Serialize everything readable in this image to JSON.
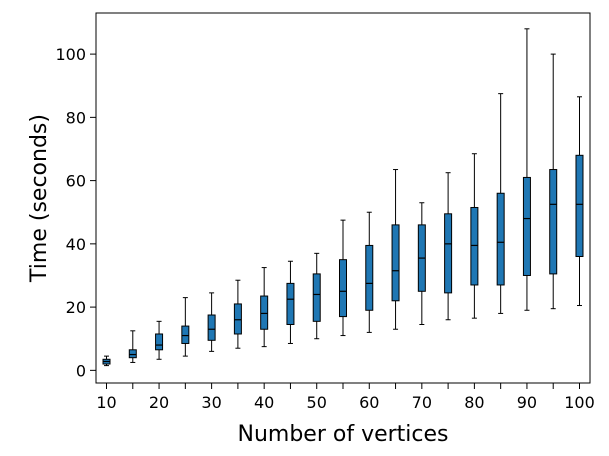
{
  "chart_data": {
    "type": "boxplot",
    "title": "",
    "xlabel": "Number of vertices",
    "ylabel": "Time (seconds)",
    "xlim": [
      8,
      102
    ],
    "ylim": [
      -4,
      113
    ],
    "x_major_ticks": [
      10,
      20,
      30,
      40,
      50,
      60,
      70,
      80,
      90,
      100
    ],
    "x_minor_ticks": [
      15,
      25,
      35,
      45,
      55,
      65,
      75,
      85,
      95
    ],
    "y_ticks": [
      0,
      20,
      40,
      60,
      80,
      100
    ],
    "box_color": "#1f77b4",
    "edge_color": "#000000",
    "boxes": [
      {
        "x": 10,
        "whisker_low": 1.5,
        "q1": 2.0,
        "median": 2.8,
        "q3": 3.5,
        "whisker_high": 4.5
      },
      {
        "x": 15,
        "whisker_low": 2.5,
        "q1": 4.0,
        "median": 5.0,
        "q3": 6.5,
        "whisker_high": 12.5
      },
      {
        "x": 20,
        "whisker_low": 3.5,
        "q1": 6.5,
        "median": 8.0,
        "q3": 11.5,
        "whisker_high": 15.5
      },
      {
        "x": 25,
        "whisker_low": 4.5,
        "q1": 8.5,
        "median": 11.0,
        "q3": 14.0,
        "whisker_high": 23.0
      },
      {
        "x": 30,
        "whisker_low": 6.0,
        "q1": 9.5,
        "median": 13.0,
        "q3": 17.5,
        "whisker_high": 24.5
      },
      {
        "x": 35,
        "whisker_low": 7.0,
        "q1": 11.5,
        "median": 16.0,
        "q3": 21.0,
        "whisker_high": 28.5
      },
      {
        "x": 40,
        "whisker_low": 7.5,
        "q1": 13.0,
        "median": 18.0,
        "q3": 23.5,
        "whisker_high": 32.5
      },
      {
        "x": 45,
        "whisker_low": 8.5,
        "q1": 14.5,
        "median": 22.5,
        "q3": 27.5,
        "whisker_high": 34.5
      },
      {
        "x": 50,
        "whisker_low": 10.0,
        "q1": 15.5,
        "median": 24.0,
        "q3": 30.5,
        "whisker_high": 37.0
      },
      {
        "x": 55,
        "whisker_low": 11.0,
        "q1": 17.0,
        "median": 25.0,
        "q3": 35.0,
        "whisker_high": 47.5
      },
      {
        "x": 60,
        "whisker_low": 12.0,
        "q1": 19.0,
        "median": 27.5,
        "q3": 39.5,
        "whisker_high": 50.0
      },
      {
        "x": 65,
        "whisker_low": 13.0,
        "q1": 22.0,
        "median": 31.5,
        "q3": 46.0,
        "whisker_high": 63.5
      },
      {
        "x": 70,
        "whisker_low": 14.5,
        "q1": 25.0,
        "median": 35.5,
        "q3": 46.0,
        "whisker_high": 53.0
      },
      {
        "x": 75,
        "whisker_low": 16.0,
        "q1": 24.5,
        "median": 40.0,
        "q3": 49.5,
        "whisker_high": 62.5
      },
      {
        "x": 80,
        "whisker_low": 16.5,
        "q1": 27.0,
        "median": 39.5,
        "q3": 51.5,
        "whisker_high": 68.5
      },
      {
        "x": 85,
        "whisker_low": 18.0,
        "q1": 27.0,
        "median": 40.5,
        "q3": 56.0,
        "whisker_high": 87.5
      },
      {
        "x": 90,
        "whisker_low": 19.0,
        "q1": 30.0,
        "median": 48.0,
        "q3": 61.0,
        "whisker_high": 108.0
      },
      {
        "x": 95,
        "whisker_low": 19.5,
        "q1": 30.5,
        "median": 52.5,
        "q3": 63.5,
        "whisker_high": 100.0
      },
      {
        "x": 100,
        "whisker_low": 20.5,
        "q1": 36.0,
        "median": 52.5,
        "q3": 68.0,
        "whisker_high": 86.5
      }
    ]
  }
}
